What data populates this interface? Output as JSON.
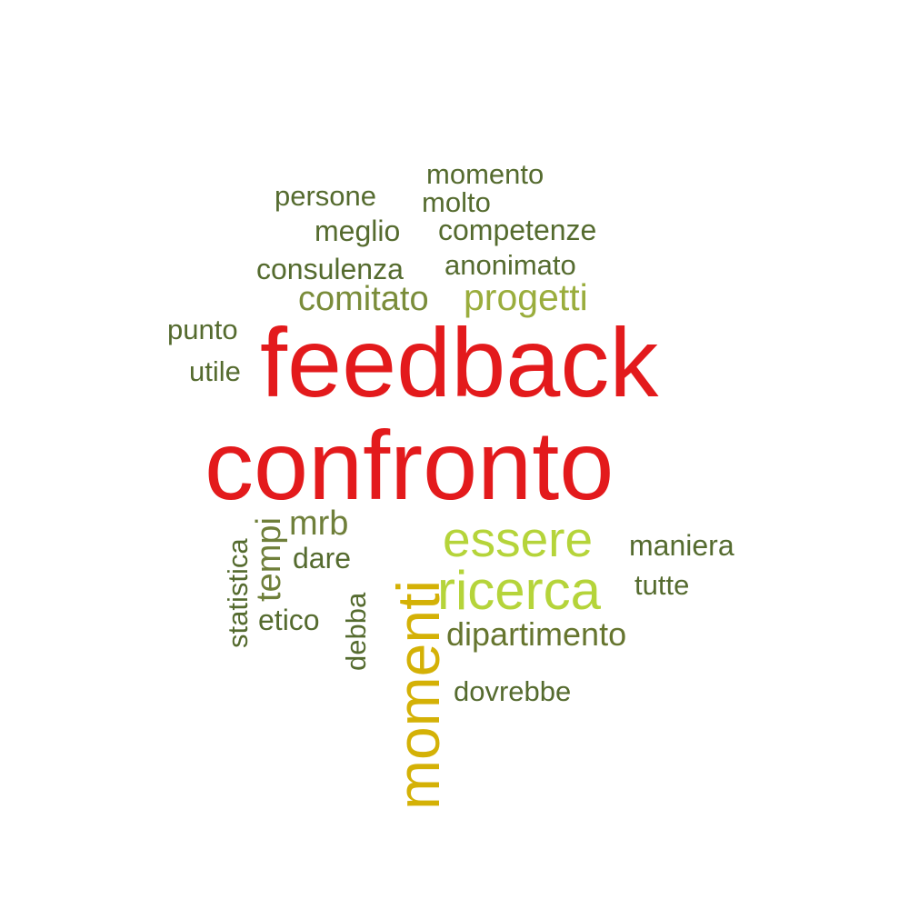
{
  "word_cloud": {
    "words": [
      {
        "id": "feedback",
        "text": "feedback",
        "color": "#e31a1c"
      },
      {
        "id": "confronto",
        "text": "confronto",
        "color": "#e31a1c"
      },
      {
        "id": "momenti",
        "text": "momenti",
        "color": "#d4b106",
        "orientation": "vertical"
      },
      {
        "id": "essere",
        "text": "essere",
        "color": "#b5d43a"
      },
      {
        "id": "ricerca",
        "text": "ricerca",
        "color": "#b5d43a"
      },
      {
        "id": "progetti",
        "text": "progetti",
        "color": "#9aad3d"
      },
      {
        "id": "comitato",
        "text": "comitato",
        "color": "#7a8c3a"
      },
      {
        "id": "mrb",
        "text": "mrb",
        "color": "#6f7f3a"
      },
      {
        "id": "tempi",
        "text": "tempi",
        "color": "#6f7f3a",
        "orientation": "vertical"
      },
      {
        "id": "momento",
        "text": "momento",
        "color": "#556b2f"
      },
      {
        "id": "molto",
        "text": "molto",
        "color": "#556b2f"
      },
      {
        "id": "persone",
        "text": "persone",
        "color": "#556b2f"
      },
      {
        "id": "meglio",
        "text": "meglio",
        "color": "#556b2f"
      },
      {
        "id": "competenze",
        "text": "competenze",
        "color": "#556b2f"
      },
      {
        "id": "consulenza",
        "text": "consulenza",
        "color": "#556b2f"
      },
      {
        "id": "anonimato",
        "text": "anonimato",
        "color": "#556b2f"
      },
      {
        "id": "punto",
        "text": "punto",
        "color": "#556b2f"
      },
      {
        "id": "utile",
        "text": "utile",
        "color": "#556b2f"
      },
      {
        "id": "maniera",
        "text": "maniera",
        "color": "#556b2f"
      },
      {
        "id": "tutte",
        "text": "tutte",
        "color": "#556b2f"
      },
      {
        "id": "dipartimento",
        "text": "dipartimento",
        "color": "#66752f"
      },
      {
        "id": "dovrebbe",
        "text": "dovrebbe",
        "color": "#556b2f"
      },
      {
        "id": "dare",
        "text": "dare",
        "color": "#556b2f"
      },
      {
        "id": "etico",
        "text": "etico",
        "color": "#556b2f"
      },
      {
        "id": "statistica",
        "text": "statistica",
        "color": "#556b2f",
        "orientation": "vertical"
      },
      {
        "id": "debba",
        "text": "debba",
        "color": "#556b2f",
        "orientation": "vertical"
      }
    ]
  }
}
